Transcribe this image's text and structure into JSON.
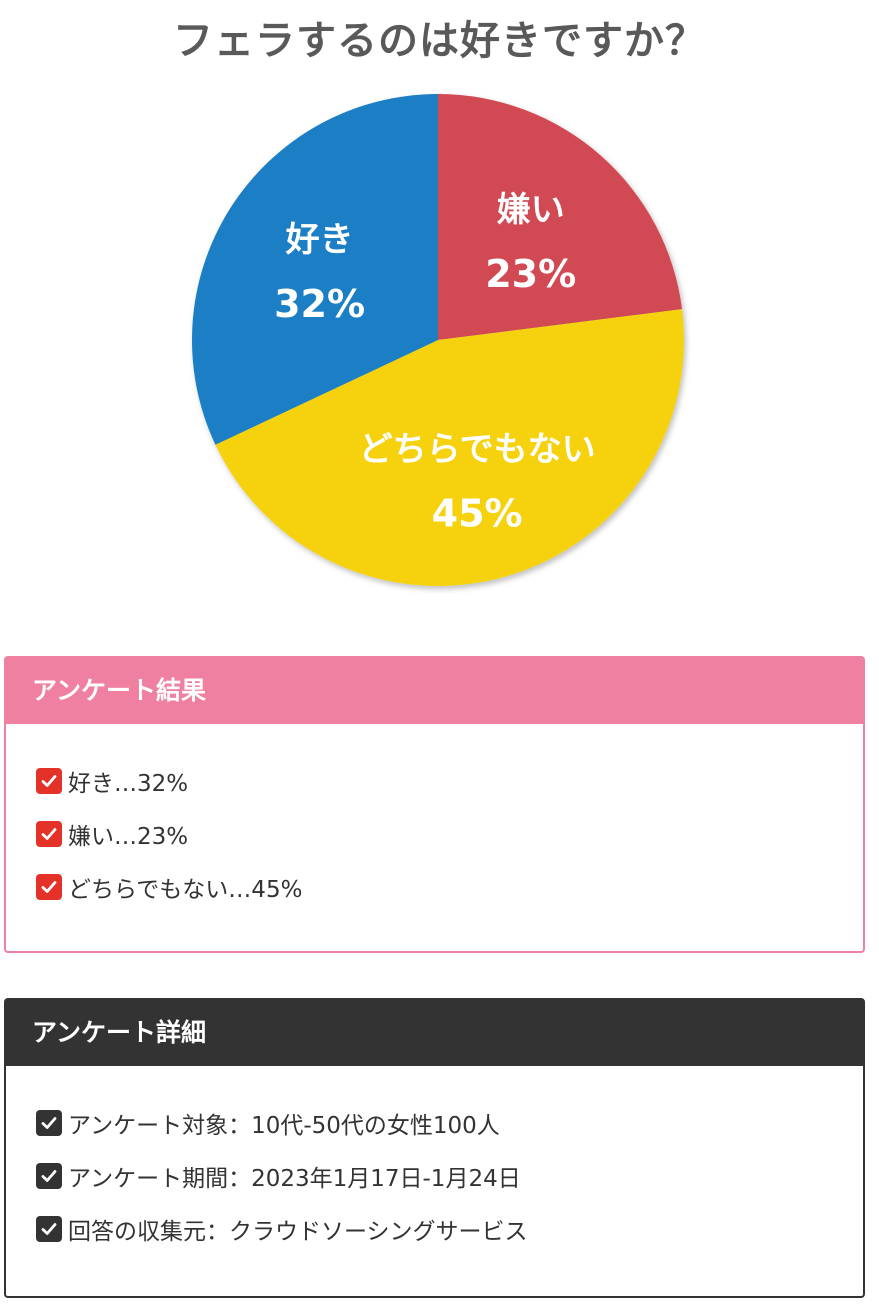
{
  "chart_data": {
    "type": "pie",
    "title": "フェラするのは好きですか？",
    "slices": [
      {
        "name": "嫌い",
        "value": 23,
        "label": "23%",
        "color": "#d14a52"
      },
      {
        "name": "どちらでもない",
        "value": 45,
        "label": "45%",
        "color": "#f5d20e"
      },
      {
        "name": "好き",
        "value": 32,
        "label": "32%",
        "color": "#1a7ec4"
      }
    ]
  },
  "results_box": {
    "title": "アンケート結果",
    "accent_color": "#f080a0",
    "check_color": "#e53228",
    "check_icon": "checkbox-checked-icon",
    "items": [
      "好き…32%",
      "嫌い…23%",
      "どちらでもない…45%"
    ]
  },
  "details_box": {
    "title": "アンケート詳細",
    "accent_color": "#333333",
    "check_icon": "checkbox-checked-icon",
    "items": [
      "アンケート対象：10代-50代の女性100人",
      "アンケート期間：2023年1月17日-1月24日",
      "回答の収集元：クラウドソーシングサービス"
    ]
  }
}
